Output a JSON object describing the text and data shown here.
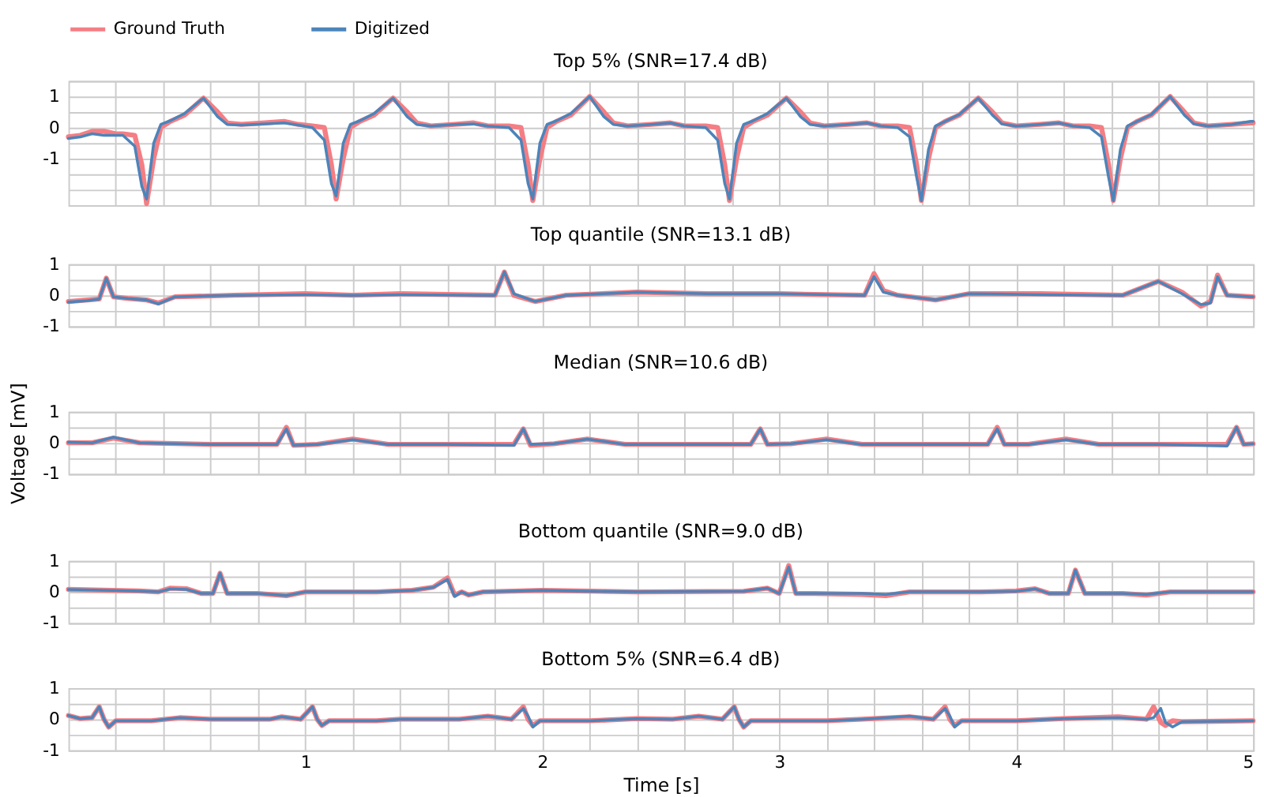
{
  "chart_data": [
    {
      "type": "line",
      "title": "Top 5% (SNR=17.4 dB)",
      "legend": "top left",
      "grid": true,
      "tick_labels": "y",
      "x": [
        0,
        0.05,
        0.1,
        0.15,
        0.2,
        0.23,
        0.28,
        0.31,
        0.33,
        0.36,
        0.39,
        0.43,
        0.49,
        0.57,
        0.63,
        0.67,
        0.73,
        0.83,
        0.91,
        0.97,
        1.03,
        1.08,
        1.11,
        1.13,
        1.16,
        1.19,
        1.23,
        1.29,
        1.37,
        1.43,
        1.47,
        1.53,
        1.63,
        1.71,
        1.77,
        1.86,
        1.91,
        1.94,
        1.96,
        1.99,
        2.02,
        2.06,
        2.12,
        2.2,
        2.26,
        2.3,
        2.36,
        2.46,
        2.54,
        2.6,
        2.69,
        2.74,
        2.77,
        2.79,
        2.82,
        2.85,
        2.89,
        2.95,
        3.03,
        3.09,
        3.13,
        3.19,
        3.29,
        3.37,
        3.43,
        3.5,
        3.55,
        3.58,
        3.6,
        3.63,
        3.66,
        3.7,
        3.76,
        3.84,
        3.9,
        3.94,
        4.0,
        4.1,
        4.18,
        4.24,
        4.31,
        4.36,
        4.39,
        4.41,
        4.44,
        4.47,
        4.51,
        4.57,
        4.65,
        4.71,
        4.75,
        4.81,
        4.91,
        4.99,
        5.0
      ],
      "series": [
        {
          "name": "Ground Truth",
          "color": "#f47e84",
          "values": [
            -0.3,
            -0.25,
            -0.12,
            -0.12,
            -0.2,
            -0.2,
            -0.25,
            -1.2,
            -2.45,
            -1.0,
            0.0,
            0.2,
            0.4,
            0.95,
            0.5,
            0.15,
            0.1,
            0.15,
            0.2,
            0.1,
            0.05,
            0.0,
            -1.2,
            -2.3,
            -1.0,
            0.0,
            0.2,
            0.4,
            0.95,
            0.5,
            0.15,
            0.05,
            0.1,
            0.15,
            0.05,
            0.05,
            0.0,
            -1.2,
            -2.35,
            -1.0,
            0.0,
            0.2,
            0.4,
            1.0,
            0.5,
            0.15,
            0.05,
            0.1,
            0.15,
            0.05,
            0.05,
            0.0,
            -1.2,
            -2.35,
            -1.0,
            0.0,
            0.2,
            0.4,
            0.95,
            0.5,
            0.15,
            0.05,
            0.1,
            0.15,
            0.05,
            0.05,
            0.0,
            -1.2,
            -2.35,
            -1.0,
            0.0,
            0.2,
            0.4,
            0.95,
            0.5,
            0.15,
            0.05,
            0.1,
            0.15,
            0.05,
            0.05,
            0.0,
            -1.2,
            -2.35,
            -1.0,
            0.0,
            0.2,
            0.4,
            1.0,
            0.5,
            0.15,
            0.05,
            0.1,
            0.15,
            0.15
          ]
        },
        {
          "name": "Digitized",
          "color": "#4c84ba",
          "values": [
            -0.35,
            -0.3,
            -0.2,
            -0.25,
            -0.25,
            -0.25,
            -0.6,
            -1.9,
            -2.3,
            -0.5,
            0.1,
            0.22,
            0.45,
            0.95,
            0.35,
            0.1,
            0.08,
            0.12,
            0.15,
            0.08,
            0.0,
            -0.4,
            -1.8,
            -2.2,
            -0.5,
            0.1,
            0.22,
            0.45,
            0.95,
            0.35,
            0.1,
            0.05,
            0.1,
            0.12,
            0.05,
            0.0,
            -0.4,
            -1.8,
            -2.3,
            -0.5,
            0.1,
            0.22,
            0.45,
            1.0,
            0.35,
            0.1,
            0.05,
            0.1,
            0.15,
            0.05,
            0.0,
            -0.4,
            -1.8,
            -2.3,
            -0.5,
            0.1,
            0.22,
            0.45,
            0.95,
            0.35,
            0.1,
            0.05,
            0.1,
            0.15,
            0.05,
            0.0,
            -0.3,
            -1.6,
            -2.35,
            -0.7,
            0.05,
            0.2,
            0.42,
            0.95,
            0.4,
            0.12,
            0.05,
            0.1,
            0.15,
            0.05,
            0.0,
            -0.3,
            -1.6,
            -2.35,
            -0.7,
            0.05,
            0.2,
            0.42,
            1.0,
            0.4,
            0.12,
            0.05,
            0.1,
            0.2,
            0.2
          ]
        }
      ],
      "xlim": [
        0,
        5
      ],
      "ylim": [
        -2.5,
        1.5
      ],
      "xticks": [
        {
          "value": 0.2,
          "label": null
        },
        {
          "value": 0.4,
          "label": null
        },
        {
          "value": 0.6,
          "label": null
        },
        {
          "value": 0.8,
          "label": null
        },
        1,
        {
          "value": 1.2,
          "label": null
        },
        {
          "value": 1.4,
          "label": null
        },
        {
          "value": 1.6,
          "label": null
        },
        {
          "value": 1.8,
          "label": null
        },
        2,
        {
          "value": 2.2,
          "label": null
        },
        {
          "value": 2.4,
          "label": null
        },
        {
          "value": 2.6,
          "label": null
        },
        {
          "value": 2.8,
          "label": null
        },
        3,
        {
          "value": 3.2,
          "label": null
        },
        {
          "value": 3.4,
          "label": null
        },
        {
          "value": 3.6,
          "label": null
        },
        {
          "value": 3.8,
          "label": null
        },
        4,
        {
          "value": 4.2,
          "label": null
        },
        {
          "value": 4.4,
          "label": null
        },
        {
          "value": 4.6,
          "label": null
        },
        {
          "value": 4.8,
          "label": null
        },
        5
      ],
      "yticks": [
        {
          "value": -2.5,
          "label": null
        },
        {
          "value": -2,
          "label": null
        },
        {
          "value": -1.5,
          "label": null
        },
        -1,
        {
          "value": -0.5,
          "label": null
        },
        0,
        {
          "value": 0.5,
          "label": null
        },
        1,
        {
          "value": 1.5,
          "label": null
        }
      ]
    },
    {
      "type": "line",
      "title": "Top quantile (SNR=13.1 dB)",
      "grid": true,
      "tick_labels": "y",
      "x": [
        0,
        0.08,
        0.13,
        0.16,
        0.19,
        0.25,
        0.33,
        0.38,
        0.45,
        0.7,
        1.0,
        1.2,
        1.4,
        1.8,
        1.84,
        1.88,
        1.97,
        2.1,
        2.4,
        2.7,
        3.0,
        3.36,
        3.4,
        3.44,
        3.5,
        3.66,
        3.8,
        4.1,
        4.45,
        4.6,
        4.7,
        4.78,
        4.82,
        4.85,
        4.89,
        5.0
      ],
      "series": [
        {
          "name": "Ground Truth",
          "color": "#f47e84",
          "values": [
            -0.2,
            -0.15,
            -0.12,
            0.55,
            -0.05,
            -0.1,
            -0.15,
            -0.25,
            -0.05,
            0,
            0.05,
            0,
            0.05,
            0,
            0.75,
            0,
            -0.2,
            0,
            0.1,
            0.05,
            0.05,
            0,
            0.7,
            0.15,
            0,
            -0.15,
            0.05,
            0.05,
            0,
            0.45,
            0.1,
            -0.35,
            -0.2,
            0.65,
            0,
            -0.05
          ]
        },
        {
          "name": "Digitized",
          "color": "#4c84ba",
          "values": [
            -0.22,
            -0.17,
            -0.12,
            0.55,
            -0.05,
            -0.1,
            -0.15,
            -0.28,
            -0.05,
            0,
            0.02,
            0,
            0.02,
            0,
            0.75,
            0.05,
            -0.2,
            0,
            0.1,
            0.05,
            0.05,
            0,
            0.6,
            0.1,
            0,
            -0.15,
            0.05,
            0.02,
            0,
            0.45,
            0.05,
            -0.3,
            -0.25,
            0.6,
            0,
            -0.05
          ]
        }
      ],
      "xlim": [
        0,
        5
      ],
      "ylim": [
        -1,
        1
      ],
      "xticks": [
        {
          "value": 0.2,
          "label": null
        },
        {
          "value": 0.4,
          "label": null
        },
        {
          "value": 0.6,
          "label": null
        },
        {
          "value": 0.8,
          "label": null
        },
        1,
        {
          "value": 1.2,
          "label": null
        },
        {
          "value": 1.4,
          "label": null
        },
        {
          "value": 1.6,
          "label": null
        },
        {
          "value": 1.8,
          "label": null
        },
        2,
        {
          "value": 2.2,
          "label": null
        },
        {
          "value": 2.4,
          "label": null
        },
        {
          "value": 2.6,
          "label": null
        },
        {
          "value": 2.8,
          "label": null
        },
        3,
        {
          "value": 3.2,
          "label": null
        },
        {
          "value": 3.4,
          "label": null
        },
        {
          "value": 3.6,
          "label": null
        },
        {
          "value": 3.8,
          "label": null
        },
        4,
        {
          "value": 4.2,
          "label": null
        },
        {
          "value": 4.4,
          "label": null
        },
        {
          "value": 4.6,
          "label": null
        },
        {
          "value": 4.8,
          "label": null
        },
        5
      ],
      "yticks": [
        -1,
        {
          "value": -0.5,
          "label": null
        },
        0,
        {
          "value": 0.5,
          "label": null
        },
        1
      ]
    },
    {
      "type": "line",
      "title": "Median (SNR=10.6 dB)",
      "ylabel": "Voltage [mV]",
      "grid": true,
      "tick_labels": "y",
      "x": [
        0,
        0.1,
        0.19,
        0.3,
        0.6,
        0.88,
        0.92,
        0.95,
        1.05,
        1.2,
        1.35,
        1.6,
        1.88,
        1.92,
        1.95,
        2.05,
        2.19,
        2.35,
        2.6,
        2.88,
        2.92,
        2.95,
        3.05,
        3.2,
        3.35,
        3.6,
        3.88,
        3.92,
        3.95,
        4.05,
        4.21,
        4.35,
        4.6,
        4.89,
        4.93,
        4.96,
        5.0
      ],
      "series": [
        {
          "name": "Ground Truth",
          "color": "#f47e84",
          "values": [
            0,
            0,
            0.15,
            0,
            -0.05,
            -0.05,
            0.5,
            -0.08,
            -0.05,
            0.12,
            -0.05,
            -0.05,
            -0.05,
            0.45,
            -0.08,
            -0.03,
            0.12,
            -0.05,
            -0.05,
            -0.05,
            0.45,
            -0.05,
            -0.03,
            0.12,
            -0.05,
            -0.05,
            -0.05,
            0.5,
            -0.05,
            -0.05,
            0.12,
            -0.05,
            -0.05,
            -0.05,
            0.5,
            -0.05,
            -0.03
          ]
        },
        {
          "name": "Digitized",
          "color": "#4c84ba",
          "values": [
            0.02,
            0,
            0.18,
            0,
            -0.05,
            -0.05,
            0.45,
            -0.08,
            -0.05,
            0.1,
            -0.05,
            -0.05,
            -0.08,
            0.45,
            -0.05,
            -0.03,
            0.12,
            -0.05,
            -0.05,
            -0.05,
            0.45,
            -0.05,
            -0.03,
            0.1,
            -0.05,
            -0.05,
            -0.05,
            0.45,
            -0.05,
            -0.05,
            0.1,
            -0.05,
            -0.05,
            -0.1,
            0.5,
            -0.05,
            -0.03
          ]
        }
      ],
      "xlim": [
        0,
        5
      ],
      "ylim": [
        -1,
        1
      ],
      "xticks": [
        {
          "value": 0.2,
          "label": null
        },
        {
          "value": 0.4,
          "label": null
        },
        {
          "value": 0.6,
          "label": null
        },
        {
          "value": 0.8,
          "label": null
        },
        1,
        {
          "value": 1.2,
          "label": null
        },
        {
          "value": 1.4,
          "label": null
        },
        {
          "value": 1.6,
          "label": null
        },
        {
          "value": 1.8,
          "label": null
        },
        2,
        {
          "value": 2.2,
          "label": null
        },
        {
          "value": 2.4,
          "label": null
        },
        {
          "value": 2.6,
          "label": null
        },
        {
          "value": 2.8,
          "label": null
        },
        3,
        {
          "value": 3.2,
          "label": null
        },
        {
          "value": 3.4,
          "label": null
        },
        {
          "value": 3.6,
          "label": null
        },
        {
          "value": 3.8,
          "label": null
        },
        4,
        {
          "value": 4.2,
          "label": null
        },
        {
          "value": 4.4,
          "label": null
        },
        {
          "value": 4.6,
          "label": null
        },
        {
          "value": 4.8,
          "label": null
        },
        5
      ],
      "yticks": [
        -1,
        {
          "value": -0.5,
          "label": null
        },
        0,
        {
          "value": 0.5,
          "label": null
        },
        1
      ]
    },
    {
      "type": "line",
      "title": "Bottom quantile (SNR=9.0 dB)",
      "grid": true,
      "tick_labels": "y",
      "x": [
        0,
        0.3,
        0.38,
        0.43,
        0.5,
        0.56,
        0.61,
        0.64,
        0.67,
        0.8,
        0.92,
        1.0,
        1.3,
        1.45,
        1.54,
        1.6,
        1.63,
        1.66,
        1.69,
        1.75,
        2.0,
        2.4,
        2.85,
        2.95,
        3.0,
        3.04,
        3.07,
        3.15,
        3.35,
        3.45,
        3.55,
        3.85,
        4.0,
        4.08,
        4.14,
        4.22,
        4.25,
        4.29,
        4.45,
        4.55,
        4.65,
        5.0
      ],
      "series": [
        {
          "name": "Ground Truth",
          "color": "#f47e84",
          "values": [
            0.08,
            0.03,
            0,
            0.12,
            0.1,
            -0.05,
            -0.05,
            0.6,
            -0.05,
            -0.05,
            -0.12,
            0,
            0,
            0.05,
            0.15,
            0.45,
            -0.1,
            0,
            -0.1,
            0,
            0.05,
            0,
            0.02,
            0.12,
            -0.05,
            0.85,
            -0.05,
            -0.05,
            -0.08,
            -0.12,
            0,
            0,
            0.03,
            0.1,
            -0.05,
            -0.05,
            0.7,
            -0.05,
            -0.05,
            -0.1,
            0,
            0
          ]
        },
        {
          "name": "Digitized",
          "color": "#4c84ba",
          "values": [
            0.08,
            0.03,
            0,
            0.1,
            0.08,
            -0.05,
            -0.05,
            0.6,
            -0.05,
            -0.05,
            -0.12,
            0,
            0,
            0.05,
            0.15,
            0.4,
            -0.15,
            0,
            -0.1,
            0,
            0.05,
            0,
            0.02,
            0.12,
            -0.05,
            0.8,
            -0.05,
            -0.05,
            -0.05,
            -0.08,
            0,
            0,
            0.02,
            0.1,
            -0.05,
            -0.05,
            0.7,
            -0.05,
            -0.05,
            -0.08,
            0,
            0
          ]
        }
      ],
      "xlim": [
        0,
        5
      ],
      "ylim": [
        -1,
        1
      ],
      "xticks": [
        {
          "value": 0.2,
          "label": null
        },
        {
          "value": 0.4,
          "label": null
        },
        {
          "value": 0.6,
          "label": null
        },
        {
          "value": 0.8,
          "label": null
        },
        1,
        {
          "value": 1.2,
          "label": null
        },
        {
          "value": 1.4,
          "label": null
        },
        {
          "value": 1.6,
          "label": null
        },
        {
          "value": 1.8,
          "label": null
        },
        2,
        {
          "value": 2.2,
          "label": null
        },
        {
          "value": 2.4,
          "label": null
        },
        {
          "value": 2.6,
          "label": null
        },
        {
          "value": 2.8,
          "label": null
        },
        3,
        {
          "value": 3.2,
          "label": null
        },
        {
          "value": 3.4,
          "label": null
        },
        {
          "value": 3.6,
          "label": null
        },
        {
          "value": 3.8,
          "label": null
        },
        4,
        {
          "value": 4.2,
          "label": null
        },
        {
          "value": 4.4,
          "label": null
        },
        {
          "value": 4.6,
          "label": null
        },
        {
          "value": 4.8,
          "label": null
        },
        5
      ],
      "yticks": [
        -1,
        {
          "value": -0.5,
          "label": null
        },
        0,
        {
          "value": 0.5,
          "label": null
        },
        1
      ]
    },
    {
      "type": "line",
      "title": "Bottom 5% (SNR=6.4 dB)",
      "xlabel": "Time [s]",
      "grid": true,
      "x": [
        0,
        0.05,
        0.1,
        0.13,
        0.15,
        0.17,
        0.2,
        0.35,
        0.47,
        0.6,
        0.85,
        0.9,
        0.98,
        1.03,
        1.05,
        1.07,
        1.1,
        1.3,
        1.4,
        1.65,
        1.77,
        1.87,
        1.92,
        1.94,
        1.96,
        1.99,
        2.2,
        2.4,
        2.55,
        2.66,
        2.76,
        2.81,
        2.83,
        2.85,
        2.88,
        3.2,
        3.35,
        3.55,
        3.65,
        3.7,
        3.72,
        3.74,
        3.77,
        4.0,
        4.2,
        4.43,
        4.55,
        4.58,
        4.61,
        4.63,
        4.66,
        4.7,
        5.0
      ],
      "series": [
        {
          "name": "Ground Truth",
          "color": "#f47e84",
          "values": [
            0.12,
            0.02,
            0.05,
            0.4,
            0,
            -0.25,
            -0.05,
            -0.05,
            0.05,
            0,
            0,
            0.08,
            0,
            0.4,
            0,
            -0.2,
            -0.05,
            -0.05,
            0,
            0,
            0.1,
            0,
            0.4,
            0,
            -0.2,
            -0.05,
            -0.05,
            0.02,
            0,
            0.1,
            0,
            0.4,
            0,
            -0.25,
            -0.05,
            -0.05,
            0,
            0.08,
            0,
            0.4,
            0,
            -0.2,
            -0.05,
            -0.05,
            0.02,
            0.08,
            0,
            0.4,
            -0.1,
            -0.2,
            -0.05,
            -0.08,
            -0.05
          ]
        },
        {
          "name": "Digitized",
          "color": "#4c84ba",
          "values": [
            0.12,
            0.02,
            0.05,
            0.4,
            0,
            -0.25,
            -0.05,
            -0.05,
            0.05,
            0,
            0,
            0.08,
            0,
            0.4,
            0,
            -0.2,
            -0.05,
            -0.05,
            0,
            0,
            0.1,
            0,
            0.35,
            0.1,
            -0.25,
            -0.05,
            -0.05,
            0.02,
            0,
            0.1,
            0,
            0.4,
            0,
            -0.25,
            -0.05,
            -0.05,
            0,
            0.1,
            0,
            0.35,
            0.1,
            -0.25,
            -0.05,
            -0.05,
            0.02,
            0.05,
            0,
            0.05,
            0.35,
            -0.1,
            -0.25,
            -0.08,
            -0.05
          ]
        }
      ],
      "xlim": [
        0,
        5
      ],
      "ylim": [
        -1,
        1
      ],
      "xticks": [
        {
          "value": 0.2,
          "label": null
        },
        {
          "value": 0.4,
          "label": null
        },
        {
          "value": 0.6,
          "label": null
        },
        {
          "value": 0.8,
          "label": null
        },
        1,
        {
          "value": 1.2,
          "label": null
        },
        {
          "value": 1.4,
          "label": null
        },
        {
          "value": 1.6,
          "label": null
        },
        {
          "value": 1.8,
          "label": null
        },
        2,
        {
          "value": 2.2,
          "label": null
        },
        {
          "value": 2.4,
          "label": null
        },
        {
          "value": 2.6,
          "label": null
        },
        {
          "value": 2.8,
          "label": null
        },
        3,
        {
          "value": 3.2,
          "label": null
        },
        {
          "value": 3.4,
          "label": null
        },
        {
          "value": 3.6,
          "label": null
        },
        {
          "value": 3.8,
          "label": null
        },
        4,
        {
          "value": 4.2,
          "label": null
        },
        {
          "value": 4.4,
          "label": null
        },
        {
          "value": 4.6,
          "label": null
        },
        {
          "value": 4.8,
          "label": null
        },
        5
      ],
      "yticks": [
        -1,
        {
          "value": -0.5,
          "label": null
        },
        0,
        {
          "value": 0.5,
          "label": null
        },
        1
      ]
    }
  ]
}
